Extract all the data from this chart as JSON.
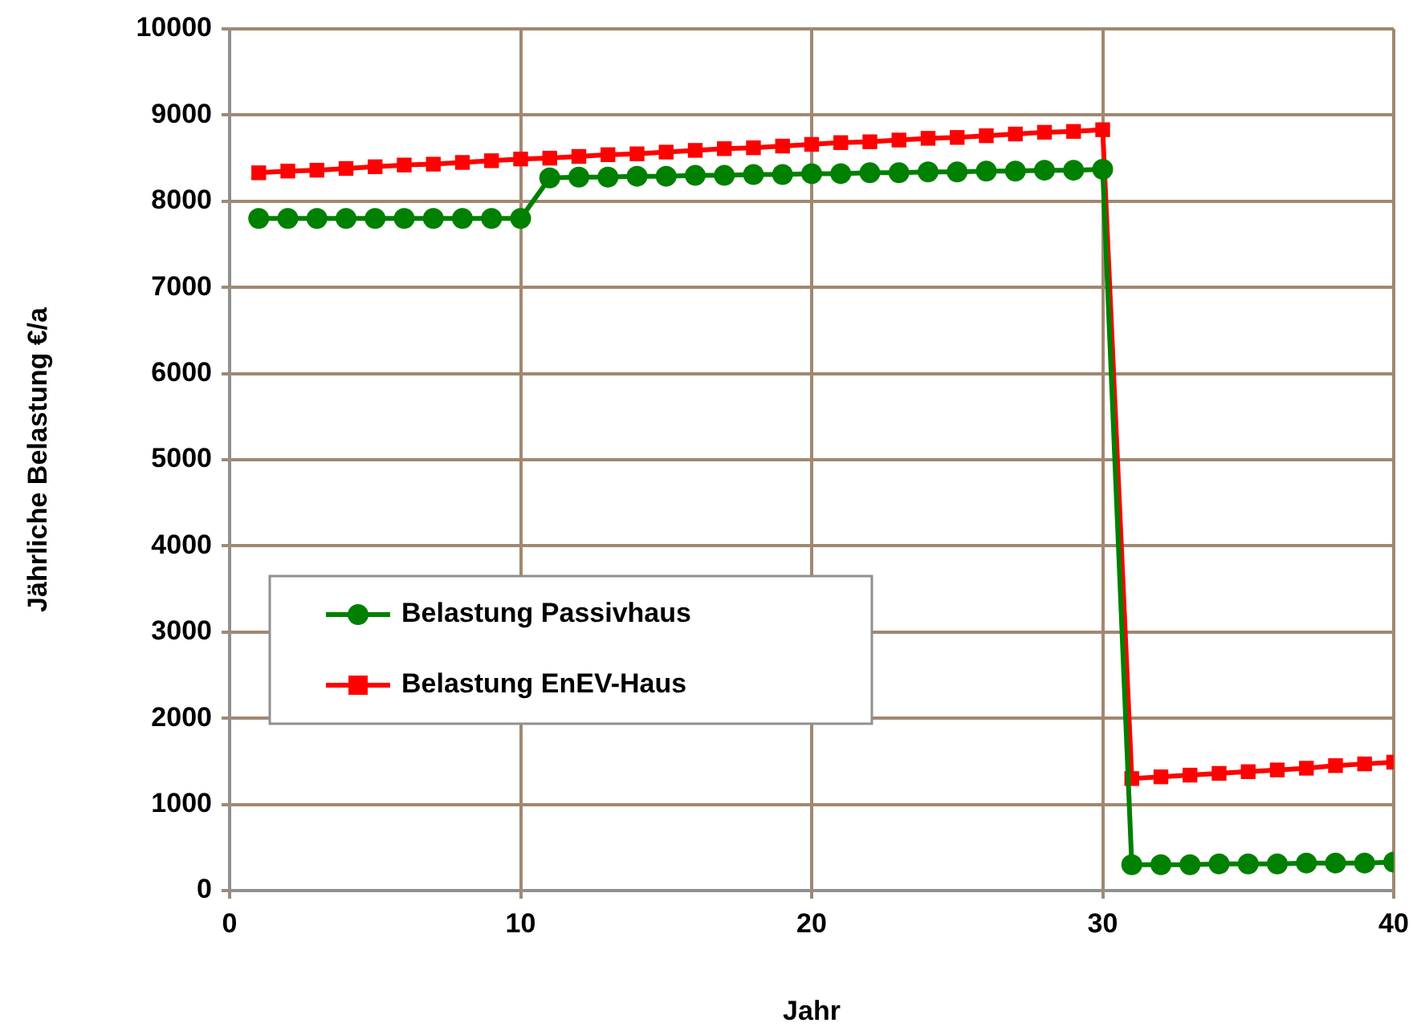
{
  "chart_data": {
    "type": "line",
    "xlabel": "Jahr",
    "ylabel": "Jährliche Belastung €/a",
    "x": [
      1,
      2,
      3,
      4,
      5,
      6,
      7,
      8,
      9,
      10,
      11,
      12,
      13,
      14,
      15,
      16,
      17,
      18,
      19,
      20,
      21,
      22,
      23,
      24,
      25,
      26,
      27,
      28,
      29,
      30,
      31,
      32,
      33,
      34,
      35,
      36,
      37,
      38,
      39,
      40
    ],
    "series": [
      {
        "name": "Belastung Passivhaus",
        "color": "#008000",
        "marker": "circle",
        "values": [
          7800,
          7800,
          7800,
          7800,
          7800,
          7800,
          7800,
          7800,
          7800,
          7800,
          8270,
          8280,
          8280,
          8290,
          8290,
          8300,
          8300,
          8310,
          8310,
          8320,
          8320,
          8330,
          8330,
          8340,
          8340,
          8350,
          8350,
          8360,
          8360,
          8370,
          300,
          300,
          300,
          310,
          310,
          310,
          320,
          320,
          320,
          330
        ]
      },
      {
        "name": "Belastung EnEV-Haus",
        "color": "#ff0000",
        "marker": "square",
        "values": [
          8330,
          8350,
          8360,
          8380,
          8400,
          8420,
          8430,
          8450,
          8470,
          8490,
          8500,
          8520,
          8540,
          8550,
          8570,
          8590,
          8610,
          8620,
          8640,
          8660,
          8680,
          8690,
          8710,
          8730,
          8740,
          8760,
          8780,
          8800,
          8810,
          8830,
          1300,
          1320,
          1340,
          1360,
          1380,
          1400,
          1420,
          1450,
          1470,
          1490
        ]
      }
    ],
    "xlim": [
      0,
      40
    ],
    "xticks": [
      0,
      10,
      20,
      30,
      40
    ],
    "ylim": [
      0,
      10000
    ],
    "yticks": [
      0,
      1000,
      2000,
      3000,
      4000,
      5000,
      6000,
      7000,
      8000,
      9000,
      10000
    ],
    "grid": true,
    "legend": "center left",
    "line_style": "solid"
  }
}
